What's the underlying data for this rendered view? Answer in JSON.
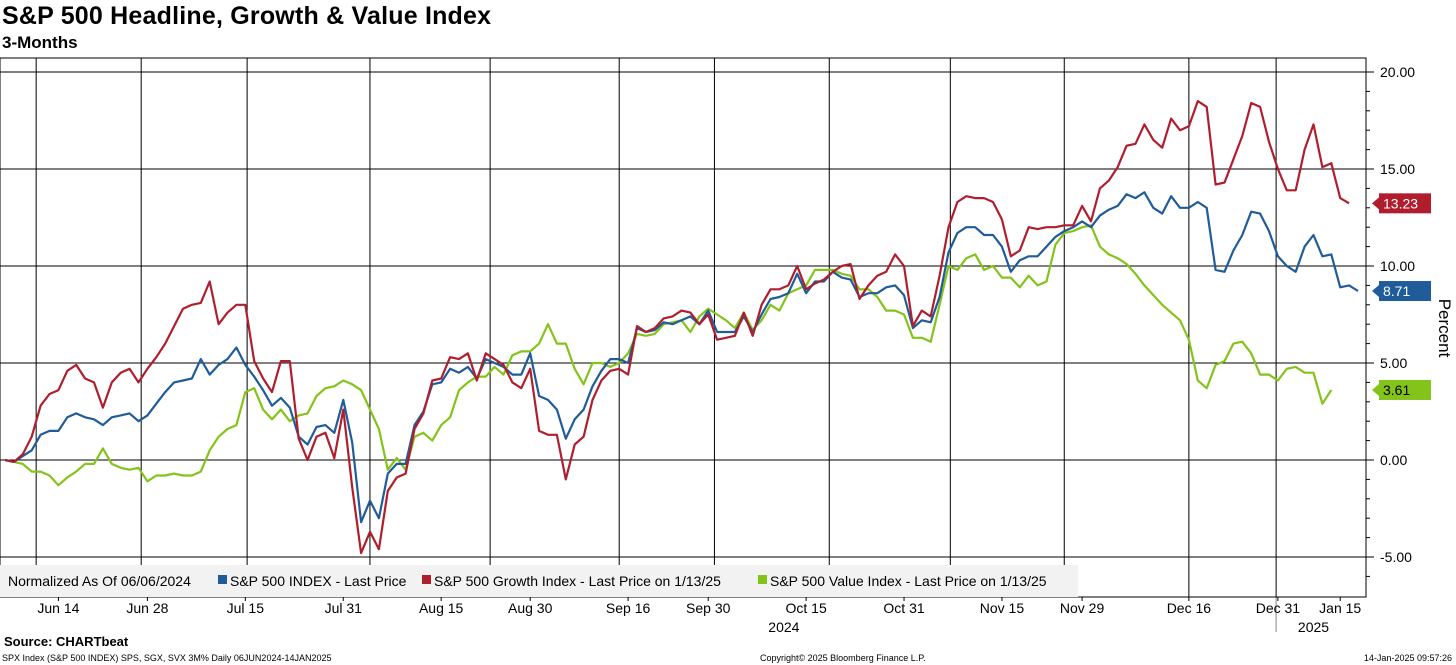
{
  "chart_data": {
    "type": "line",
    "title": "S&P 500 Headline, Growth & Value Index",
    "subtitle": "3-Months",
    "ylabel": "Percent",
    "ylim": [
      -7,
      20.5
    ],
    "y_ticks": [
      "20.00",
      "15.00",
      "10.00",
      "5.00",
      "0.00",
      "-5.00"
    ],
    "y_tick_values": [
      20,
      15,
      10,
      5,
      0,
      -5
    ],
    "x_tick_labels": [
      "Jun 14",
      "Jun 28",
      "Jul 15",
      "Jul 31",
      "Aug 15",
      "Aug 30",
      "Sep 16",
      "Sep 30",
      "Oct 15",
      "Oct 31",
      "Nov 15",
      "Nov 29",
      "Dec 16",
      "Dec 31",
      "Jan 15"
    ],
    "x_tick_index": [
      6,
      16,
      27,
      38,
      49,
      59,
      70,
      79,
      90,
      101,
      112,
      121,
      133,
      143,
      150
    ],
    "x_gridline_index": [
      3.5,
      15.3,
      27.2,
      41,
      54.5,
      69,
      79.7,
      92.6,
      106.2,
      119,
      133,
      142.8
    ],
    "year_labels": [
      "2024",
      "2025"
    ],
    "year_label_index": [
      87.5,
      147
    ],
    "legend_title": "Normalized As Of 06/06/2024",
    "series": [
      {
        "name": "S&P 500 INDEX - Last Price",
        "color": "#1f5c99",
        "last_value": "8.71",
        "values": [
          0.0,
          -0.1,
          0.2,
          0.5,
          1.3,
          1.5,
          1.5,
          2.2,
          2.4,
          2.2,
          2.1,
          1.8,
          2.2,
          2.3,
          2.4,
          2.0,
          2.3,
          2.9,
          3.5,
          4.0,
          4.1,
          4.2,
          5.2,
          4.4,
          4.9,
          5.2,
          5.8,
          4.9,
          4.3,
          3.6,
          2.8,
          3.2,
          2.7,
          1.2,
          0.8,
          1.7,
          1.8,
          1.4,
          3.1,
          0.9,
          -3.2,
          -2.1,
          -3.0,
          -0.7,
          -0.2,
          -0.2,
          1.8,
          2.5,
          3.9,
          4.0,
          4.7,
          4.5,
          4.8,
          4.2,
          5.2,
          5.0,
          4.8,
          4.4,
          4.4,
          5.5,
          3.3,
          3.1,
          2.6,
          1.1,
          2.1,
          2.6,
          3.8,
          4.6,
          5.2,
          5.2,
          5.0,
          6.8,
          6.6,
          6.7,
          7.1,
          7.0,
          7.2,
          7.4,
          7.0,
          7.7,
          6.6,
          6.6,
          6.6,
          7.4,
          6.6,
          7.5,
          8.3,
          8.4,
          8.6,
          9.6,
          8.6,
          9.2,
          9.2,
          9.7,
          9.4,
          9.3,
          8.4,
          8.6,
          8.6,
          8.9,
          9.0,
          8.5,
          6.8,
          7.2,
          7.1,
          8.4,
          10.7,
          11.7,
          12.0,
          12.0,
          11.6,
          11.6,
          11.0,
          9.7,
          10.3,
          10.5,
          10.5,
          11.0,
          11.5,
          11.8,
          12.0,
          12.3,
          12.0,
          12.6,
          12.9,
          13.1,
          13.7,
          13.5,
          13.8,
          13.0,
          12.7,
          13.6,
          13.0,
          13.0,
          13.3,
          13.0,
          9.8,
          9.7,
          10.8,
          11.6,
          12.8,
          12.7,
          11.8,
          10.5,
          10.0,
          9.7,
          11.0,
          11.6,
          10.5,
          10.6,
          8.9,
          9.0,
          8.71
        ]
      },
      {
        "name": "S&P 500 Growth Index - Last Price on 1/13/25",
        "color": "#b01e2e",
        "last_value": "13.23",
        "values": [
          0.0,
          -0.1,
          0.3,
          1.2,
          2.8,
          3.4,
          3.6,
          4.6,
          4.9,
          4.2,
          4.0,
          2.7,
          4.0,
          4.5,
          4.7,
          4.0,
          4.7,
          5.3,
          6.0,
          6.9,
          7.8,
          8.0,
          8.1,
          9.2,
          7.0,
          7.6,
          8.0,
          8.0,
          5.1,
          4.2,
          3.5,
          5.1,
          5.1,
          1.1,
          0.0,
          1.2,
          1.4,
          0.1,
          2.6,
          -1.4,
          -4.8,
          -3.7,
          -4.6,
          -1.6,
          -0.9,
          -0.7,
          1.6,
          2.4,
          4.1,
          4.2,
          5.3,
          5.2,
          5.5,
          4.1,
          5.5,
          5.2,
          4.9,
          4.0,
          3.7,
          4.7,
          1.5,
          1.3,
          1.3,
          -1.0,
          0.8,
          1.2,
          3.1,
          4.1,
          4.6,
          4.7,
          4.4,
          6.9,
          6.6,
          6.8,
          7.3,
          7.4,
          7.7,
          7.6,
          7.0,
          7.5,
          6.2,
          6.3,
          6.4,
          7.6,
          6.4,
          8.0,
          8.8,
          8.8,
          9.0,
          10.0,
          8.8,
          9.1,
          9.3,
          9.7,
          10.0,
          10.1,
          8.3,
          9.0,
          9.5,
          9.7,
          10.6,
          10.0,
          6.9,
          7.7,
          7.4,
          9.5,
          12.0,
          13.3,
          13.6,
          13.5,
          13.5,
          13.3,
          12.4,
          10.5,
          10.8,
          12.0,
          11.9,
          12.0,
          12.0,
          12.1,
          12.1,
          13.1,
          12.3,
          14.0,
          14.4,
          15.1,
          16.2,
          16.3,
          17.3,
          16.5,
          16.1,
          17.6,
          17.0,
          17.2,
          18.5,
          18.2,
          14.2,
          14.3,
          15.5,
          16.7,
          18.4,
          18.2,
          16.4,
          15.0,
          13.9,
          13.9,
          16.0,
          17.3,
          15.1,
          15.3,
          13.5,
          13.23
        ]
      },
      {
        "name": "S&P 500 Value Index - Last Price on 1/13/25",
        "color": "#84c31a",
        "last_value": "3.61",
        "values": [
          0.0,
          -0.1,
          -0.2,
          -0.6,
          -0.6,
          -0.8,
          -1.3,
          -0.9,
          -0.6,
          -0.2,
          -0.2,
          0.6,
          -0.2,
          -0.4,
          -0.5,
          -0.4,
          -1.1,
          -0.8,
          -0.8,
          -0.7,
          -0.8,
          -0.8,
          -0.6,
          0.5,
          1.2,
          1.6,
          1.8,
          3.5,
          3.7,
          2.6,
          2.1,
          2.6,
          2.0,
          2.3,
          2.4,
          3.3,
          3.7,
          3.8,
          4.1,
          3.9,
          3.6,
          2.6,
          1.6,
          -0.5,
          0.1,
          -0.5,
          1.2,
          1.4,
          1.0,
          1.8,
          2.2,
          3.6,
          4.0,
          4.3,
          4.3,
          4.8,
          4.4,
          5.4,
          5.6,
          5.6,
          6.0,
          7.0,
          6.0,
          6.0,
          4.7,
          3.9,
          5.0,
          5.0,
          4.8,
          5.0,
          5.5,
          6.5,
          6.4,
          6.5,
          7.0,
          7.1,
          7.2,
          6.6,
          7.4,
          7.8,
          7.5,
          7.2,
          6.8,
          7.6,
          6.7,
          7.2,
          8.0,
          7.7,
          8.6,
          8.8,
          9.0,
          9.8,
          9.8,
          9.8,
          9.6,
          9.5,
          8.8,
          8.8,
          8.4,
          7.7,
          7.7,
          7.5,
          6.3,
          6.3,
          6.1,
          8.0,
          10.0,
          9.8,
          10.4,
          10.6,
          9.8,
          10.0,
          9.4,
          9.4,
          8.9,
          9.5,
          9.0,
          9.2,
          11.1,
          11.7,
          11.8,
          12.0,
          12.1,
          11.0,
          10.6,
          10.4,
          10.1,
          9.6,
          9.0,
          8.5,
          8.0,
          7.6,
          7.2,
          6.2,
          4.1,
          3.7,
          4.9,
          5.1,
          6.0,
          6.1,
          5.5,
          4.4,
          4.4,
          4.1,
          4.7,
          4.8,
          4.5,
          4.5,
          2.9,
          3.61
        ]
      }
    ]
  },
  "source": "Source: CHARTbeat",
  "footer_left": "SPX Index (S&P 500 INDEX) SPS, SGX, SVX 3M%  Daily 06JUN2024-14JAN2025",
  "footer_mid": "Copyright© 2025 Bloomberg Finance L.P.",
  "footer_right": "14-Jan-2025 09:57:26"
}
